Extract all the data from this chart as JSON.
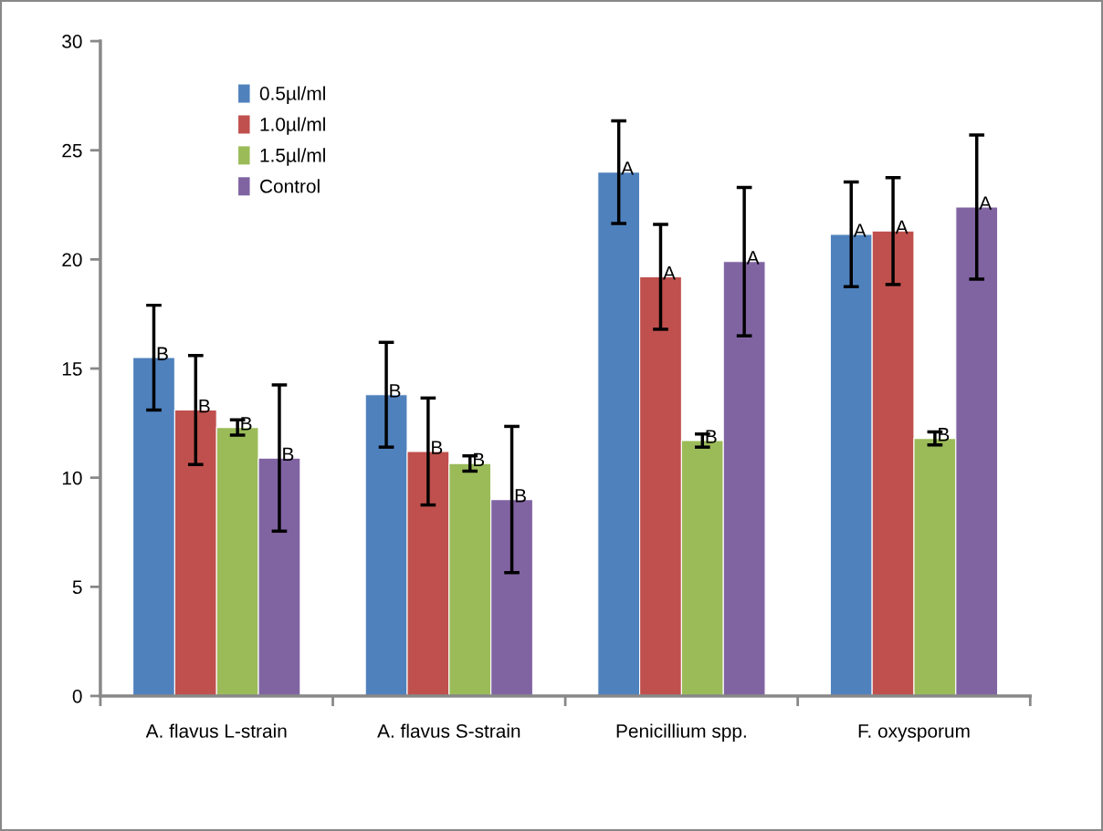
{
  "chart_data": {
    "type": "bar",
    "categories": [
      "A. flavus L-strain",
      "A. flavus S-strain",
      "Penicillium spp.",
      "F. oxysporum"
    ],
    "series": [
      {
        "name": "0.5µl/ml",
        "color": "#4f81bd",
        "values": [
          15.5,
          13.8,
          24.0,
          21.15
        ],
        "errors": [
          2.4,
          2.4,
          2.35,
          2.4
        ],
        "value_labels": [
          "B",
          "B",
          "A",
          "A"
        ]
      },
      {
        "name": "1.0µl/ml",
        "color": "#c0504d",
        "values": [
          13.1,
          11.2,
          19.2,
          21.3
        ],
        "errors": [
          2.5,
          2.45,
          2.4,
          2.45
        ],
        "value_labels": [
          "B",
          "B",
          "A",
          "A"
        ]
      },
      {
        "name": "1.5µl/ml",
        "color": "#9bbb59",
        "values": [
          12.3,
          10.65,
          11.7,
          11.8
        ],
        "errors": [
          0.35,
          0.35,
          0.3,
          0.3
        ],
        "value_labels": [
          "B",
          "B",
          "B",
          "B"
        ]
      },
      {
        "name": "Control",
        "color": "#8064a2",
        "values": [
          10.9,
          9.0,
          19.9,
          22.4
        ],
        "errors": [
          3.35,
          3.35,
          3.4,
          3.3
        ],
        "value_labels": [
          "B",
          "B",
          "A",
          "A"
        ]
      }
    ],
    "ylim": [
      0,
      30
    ],
    "yticks": [
      0,
      5,
      10,
      15,
      20,
      25,
      30
    ],
    "grid": false,
    "legend": "top left"
  }
}
